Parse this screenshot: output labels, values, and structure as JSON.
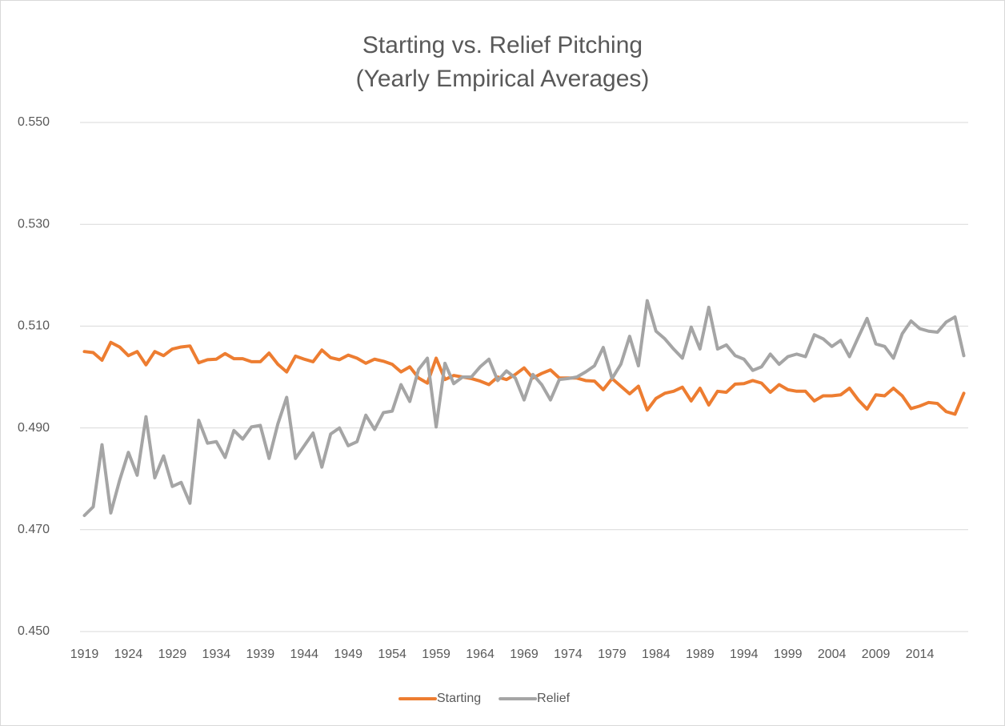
{
  "chart_data": {
    "type": "line",
    "title": [
      "Starting vs. Relief Pitching",
      "(Yearly Empirical Averages)"
    ],
    "categories": [
      "1919",
      null,
      null,
      null,
      null,
      "1924",
      null,
      null,
      null,
      null,
      "1929",
      null,
      null,
      null,
      null,
      "1934",
      null,
      null,
      null,
      null,
      "1939",
      null,
      null,
      null,
      null,
      "1944",
      null,
      null,
      null,
      null,
      "1949",
      null,
      null,
      null,
      null,
      "1954",
      null,
      null,
      null,
      null,
      "1959",
      null,
      null,
      null,
      null,
      "1964",
      null,
      null,
      null,
      null,
      "1969",
      null,
      null,
      null,
      null,
      "1974",
      null,
      null,
      null,
      null,
      "1979",
      null,
      null,
      null,
      null,
      "1984",
      null,
      null,
      null,
      null,
      "1989",
      null,
      null,
      null,
      null,
      "1994",
      null,
      null,
      null,
      null,
      "1999",
      null,
      null,
      null,
      null,
      "2004",
      null,
      null,
      null,
      null,
      "2009",
      null,
      null,
      null,
      null,
      "2014",
      null,
      null,
      null,
      null,
      null
    ],
    "series": [
      {
        "name": "Starting",
        "color": "#ed7d31",
        "values": [
          0.505,
          0.5048,
          0.5033,
          0.5068,
          0.5059,
          0.5042,
          0.505,
          0.5024,
          0.505,
          0.5042,
          0.5055,
          0.5059,
          0.5061,
          0.5028,
          0.5034,
          0.5035,
          0.5046,
          0.5036,
          0.5036,
          0.503,
          0.503,
          0.5047,
          0.5025,
          0.501,
          0.5041,
          0.5035,
          0.503,
          0.5053,
          0.5038,
          0.5034,
          0.5043,
          0.5037,
          0.5027,
          0.5035,
          0.5031,
          0.5025,
          0.501,
          0.502,
          0.4998,
          0.4988,
          0.5037,
          0.4995,
          0.5003,
          0.5,
          0.4997,
          0.4992,
          0.4985,
          0.5,
          0.4995,
          0.5005,
          0.5018,
          0.4998,
          0.5007,
          0.5014,
          0.4998,
          0.4998,
          0.4998,
          0.4993,
          0.4992,
          0.4975,
          0.4997,
          0.4982,
          0.4967,
          0.4982,
          0.4935,
          0.4958,
          0.4968,
          0.4972,
          0.498,
          0.4953,
          0.4978,
          0.4945,
          0.4972,
          0.497,
          0.4986,
          0.4987,
          0.4993,
          0.4988,
          0.497,
          0.4985,
          0.4975,
          0.4972,
          0.4972,
          0.4953,
          0.4963,
          0.4963,
          0.4965,
          0.4978,
          0.4955,
          0.4937,
          0.4965,
          0.4963,
          0.4978,
          0.4963,
          0.4938,
          0.4943,
          0.495,
          0.4948,
          0.4932,
          0.4927,
          0.4968
        ]
      },
      {
        "name": "Relief",
        "color": "#a5a5a5",
        "values": [
          0.4728,
          0.4745,
          0.4867,
          0.4733,
          0.4797,
          0.4852,
          0.4807,
          0.4922,
          0.4802,
          0.4845,
          0.4785,
          0.4793,
          0.4752,
          0.4915,
          0.487,
          0.4873,
          0.4842,
          0.4895,
          0.4878,
          0.4902,
          0.4905,
          0.484,
          0.4908,
          0.496,
          0.484,
          0.4865,
          0.489,
          0.4823,
          0.4888,
          0.49,
          0.4865,
          0.4873,
          0.4925,
          0.4897,
          0.493,
          0.4933,
          0.4985,
          0.4952,
          0.5015,
          0.5037,
          0.4902,
          0.5027,
          0.4987,
          0.5,
          0.5,
          0.502,
          0.5035,
          0.4993,
          0.5012,
          0.4998,
          0.4955,
          0.5005,
          0.4985,
          0.4955,
          0.4995,
          0.4997,
          0.5,
          0.501,
          0.5022,
          0.5058,
          0.4997,
          0.5025,
          0.508,
          0.5022,
          0.515,
          0.509,
          0.5075,
          0.5055,
          0.5037,
          0.5098,
          0.5055,
          0.5137,
          0.5055,
          0.5063,
          0.5042,
          0.5035,
          0.5013,
          0.502,
          0.5045,
          0.5025,
          0.504,
          0.5045,
          0.504,
          0.5083,
          0.5075,
          0.506,
          0.5072,
          0.504,
          0.5078,
          0.5115,
          0.5065,
          0.506,
          0.5037,
          0.5085,
          0.511,
          0.5095,
          0.509,
          0.5088,
          0.5108,
          0.5118,
          0.5042
        ]
      }
    ],
    "ylim": [
      0.45,
      0.55
    ],
    "yticks": [
      {
        "value": 0.45,
        "label": "0.450"
      },
      {
        "value": 0.47,
        "label": "0.470"
      },
      {
        "value": 0.49,
        "label": "0.490"
      },
      {
        "value": 0.51,
        "label": "0.510"
      },
      {
        "value": 0.53,
        "label": "0.530"
      },
      {
        "value": 0.55,
        "label": "0.550"
      }
    ],
    "grid": true,
    "legend": "bottom"
  }
}
